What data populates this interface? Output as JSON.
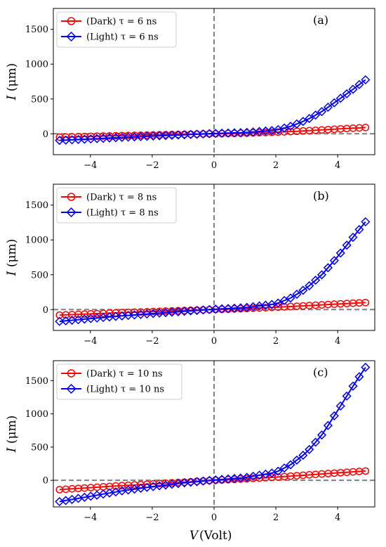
{
  "figure": {
    "xlabel_var": "V",
    "xlabel_unit": "(Volt)",
    "ylabel_var": "I",
    "ylabel_unit": "(μm)"
  },
  "colors": {
    "dark": "#ff0000",
    "light": "#0000ff",
    "reference_lines": "#808080"
  },
  "chart_data": [
    {
      "type": "line",
      "panel_label": "(a)",
      "xlim": [
        -5.2,
        5.2
      ],
      "ylim": [
        -300,
        1800
      ],
      "xticks": [
        "−4",
        "−2",
        "0",
        "2",
        "4"
      ],
      "yticks": [
        "0",
        "500",
        "1000",
        "1500"
      ],
      "x_range": [
        -5.0,
        4.9
      ],
      "legend_position": "top-left",
      "grid": false,
      "reference_lines": {
        "x": 0,
        "y": 0
      },
      "series": [
        {
          "name": "(Dark) τ = 6 ns",
          "marker": "circle",
          "color": "#ff0000",
          "a": 0.62,
          "b": 0.135,
          "y_offset": 0,
          "x_points": [
            -5.0,
            -3.0,
            -1.0,
            0.0,
            1.0,
            2.0,
            3.0,
            4.0,
            4.9
          ],
          "y_points": [
            -49.0,
            -26.0,
            -8.0,
            0.0,
            9.0,
            23.0,
            43.0,
            68.0,
            90.0
          ]
        },
        {
          "name": "(Light) τ = 6 ns",
          "marker": "diamond",
          "color": "#0000ff",
          "a": 0.0,
          "b": 0.0,
          "y_offset": 0,
          "x_points": [
            -5.0,
            -4.0,
            -3.0,
            -2.0,
            -1.0,
            0.0,
            1.0,
            2.0,
            2.5,
            3.0,
            3.5,
            4.0,
            4.5,
            4.9
          ],
          "y_points": [
            -95.0,
            -74.0,
            -53.0,
            -34.0,
            -15.0,
            5.0,
            18.0,
            51.0,
            110.0,
            199.0,
            322.0,
            480.0,
            640.0,
            775.0
          ]
        }
      ]
    },
    {
      "type": "line",
      "panel_label": "(b)",
      "xlim": [
        -5.2,
        5.2
      ],
      "ylim": [
        -300,
        1800
      ],
      "xticks": [
        "−4",
        "−2",
        "0",
        "2",
        "4"
      ],
      "yticks": [
        "0",
        "500",
        "1000",
        "1500"
      ],
      "x_range": [
        -5.0,
        4.9
      ],
      "legend_position": "top-left",
      "grid": false,
      "reference_lines": {
        "x": 0,
        "y": 0
      },
      "series": [
        {
          "name": "(Dark) τ = 8 ns",
          "marker": "circle",
          "color": "#ff0000",
          "x_points": [
            -5.0,
            -3.0,
            -1.0,
            0.0,
            1.0,
            2.0,
            3.0,
            4.0,
            4.9
          ],
          "y_points": [
            -80.0,
            -44.0,
            -14.0,
            0.0,
            14.0,
            33.0,
            55.0,
            80.0,
            100.0
          ]
        },
        {
          "name": "(Light) τ = 8 ns",
          "marker": "diamond",
          "color": "#0000ff",
          "x_points": [
            -5.0,
            -4.0,
            -3.0,
            -2.0,
            -1.0,
            0.0,
            1.0,
            2.0,
            2.5,
            3.0,
            3.5,
            4.0,
            4.5,
            4.9
          ],
          "y_points": [
            -170.0,
            -130.0,
            -92.0,
            -58.0,
            -27.0,
            5.0,
            28.0,
            80.0,
            170.0,
            310.0,
            505.0,
            760.0,
            1040.0,
            1260.0
          ]
        }
      ]
    },
    {
      "type": "line",
      "panel_label": "(c)",
      "xlim": [
        -5.2,
        5.2
      ],
      "ylim": [
        -400,
        1800
      ],
      "xticks": [
        "−4",
        "−2",
        "0",
        "2",
        "4"
      ],
      "yticks": [
        "0",
        "500",
        "1000",
        "1500"
      ],
      "x_range": [
        -5.0,
        4.9
      ],
      "legend_position": "top-left",
      "grid": false,
      "reference_lines": {
        "x": 0,
        "y": 0
      },
      "series": [
        {
          "name": "(Dark) τ = 10 ns",
          "marker": "circle",
          "color": "#ff0000",
          "x_points": [
            -5.0,
            -3.0,
            -1.0,
            0.0,
            1.0,
            2.0,
            3.0,
            4.0,
            4.9
          ],
          "y_points": [
            -140.0,
            -80.0,
            -28.0,
            0.0,
            22.0,
            48.0,
            80.0,
            112.0,
            140.0
          ]
        },
        {
          "name": "(Light) τ = 10 ns",
          "marker": "diamond",
          "color": "#0000ff",
          "x_points": [
            -5.0,
            -4.0,
            -3.0,
            -2.0,
            -1.0,
            0.0,
            1.0,
            2.0,
            2.5,
            3.0,
            3.5,
            4.0,
            4.5,
            4.9
          ],
          "y_points": [
            -320.0,
            -240.0,
            -160.0,
            -95.0,
            -40.0,
            5.0,
            40.0,
            120.0,
            240.0,
            420.0,
            690.0,
            1050.0,
            1420.0,
            1700.0
          ]
        }
      ]
    }
  ]
}
